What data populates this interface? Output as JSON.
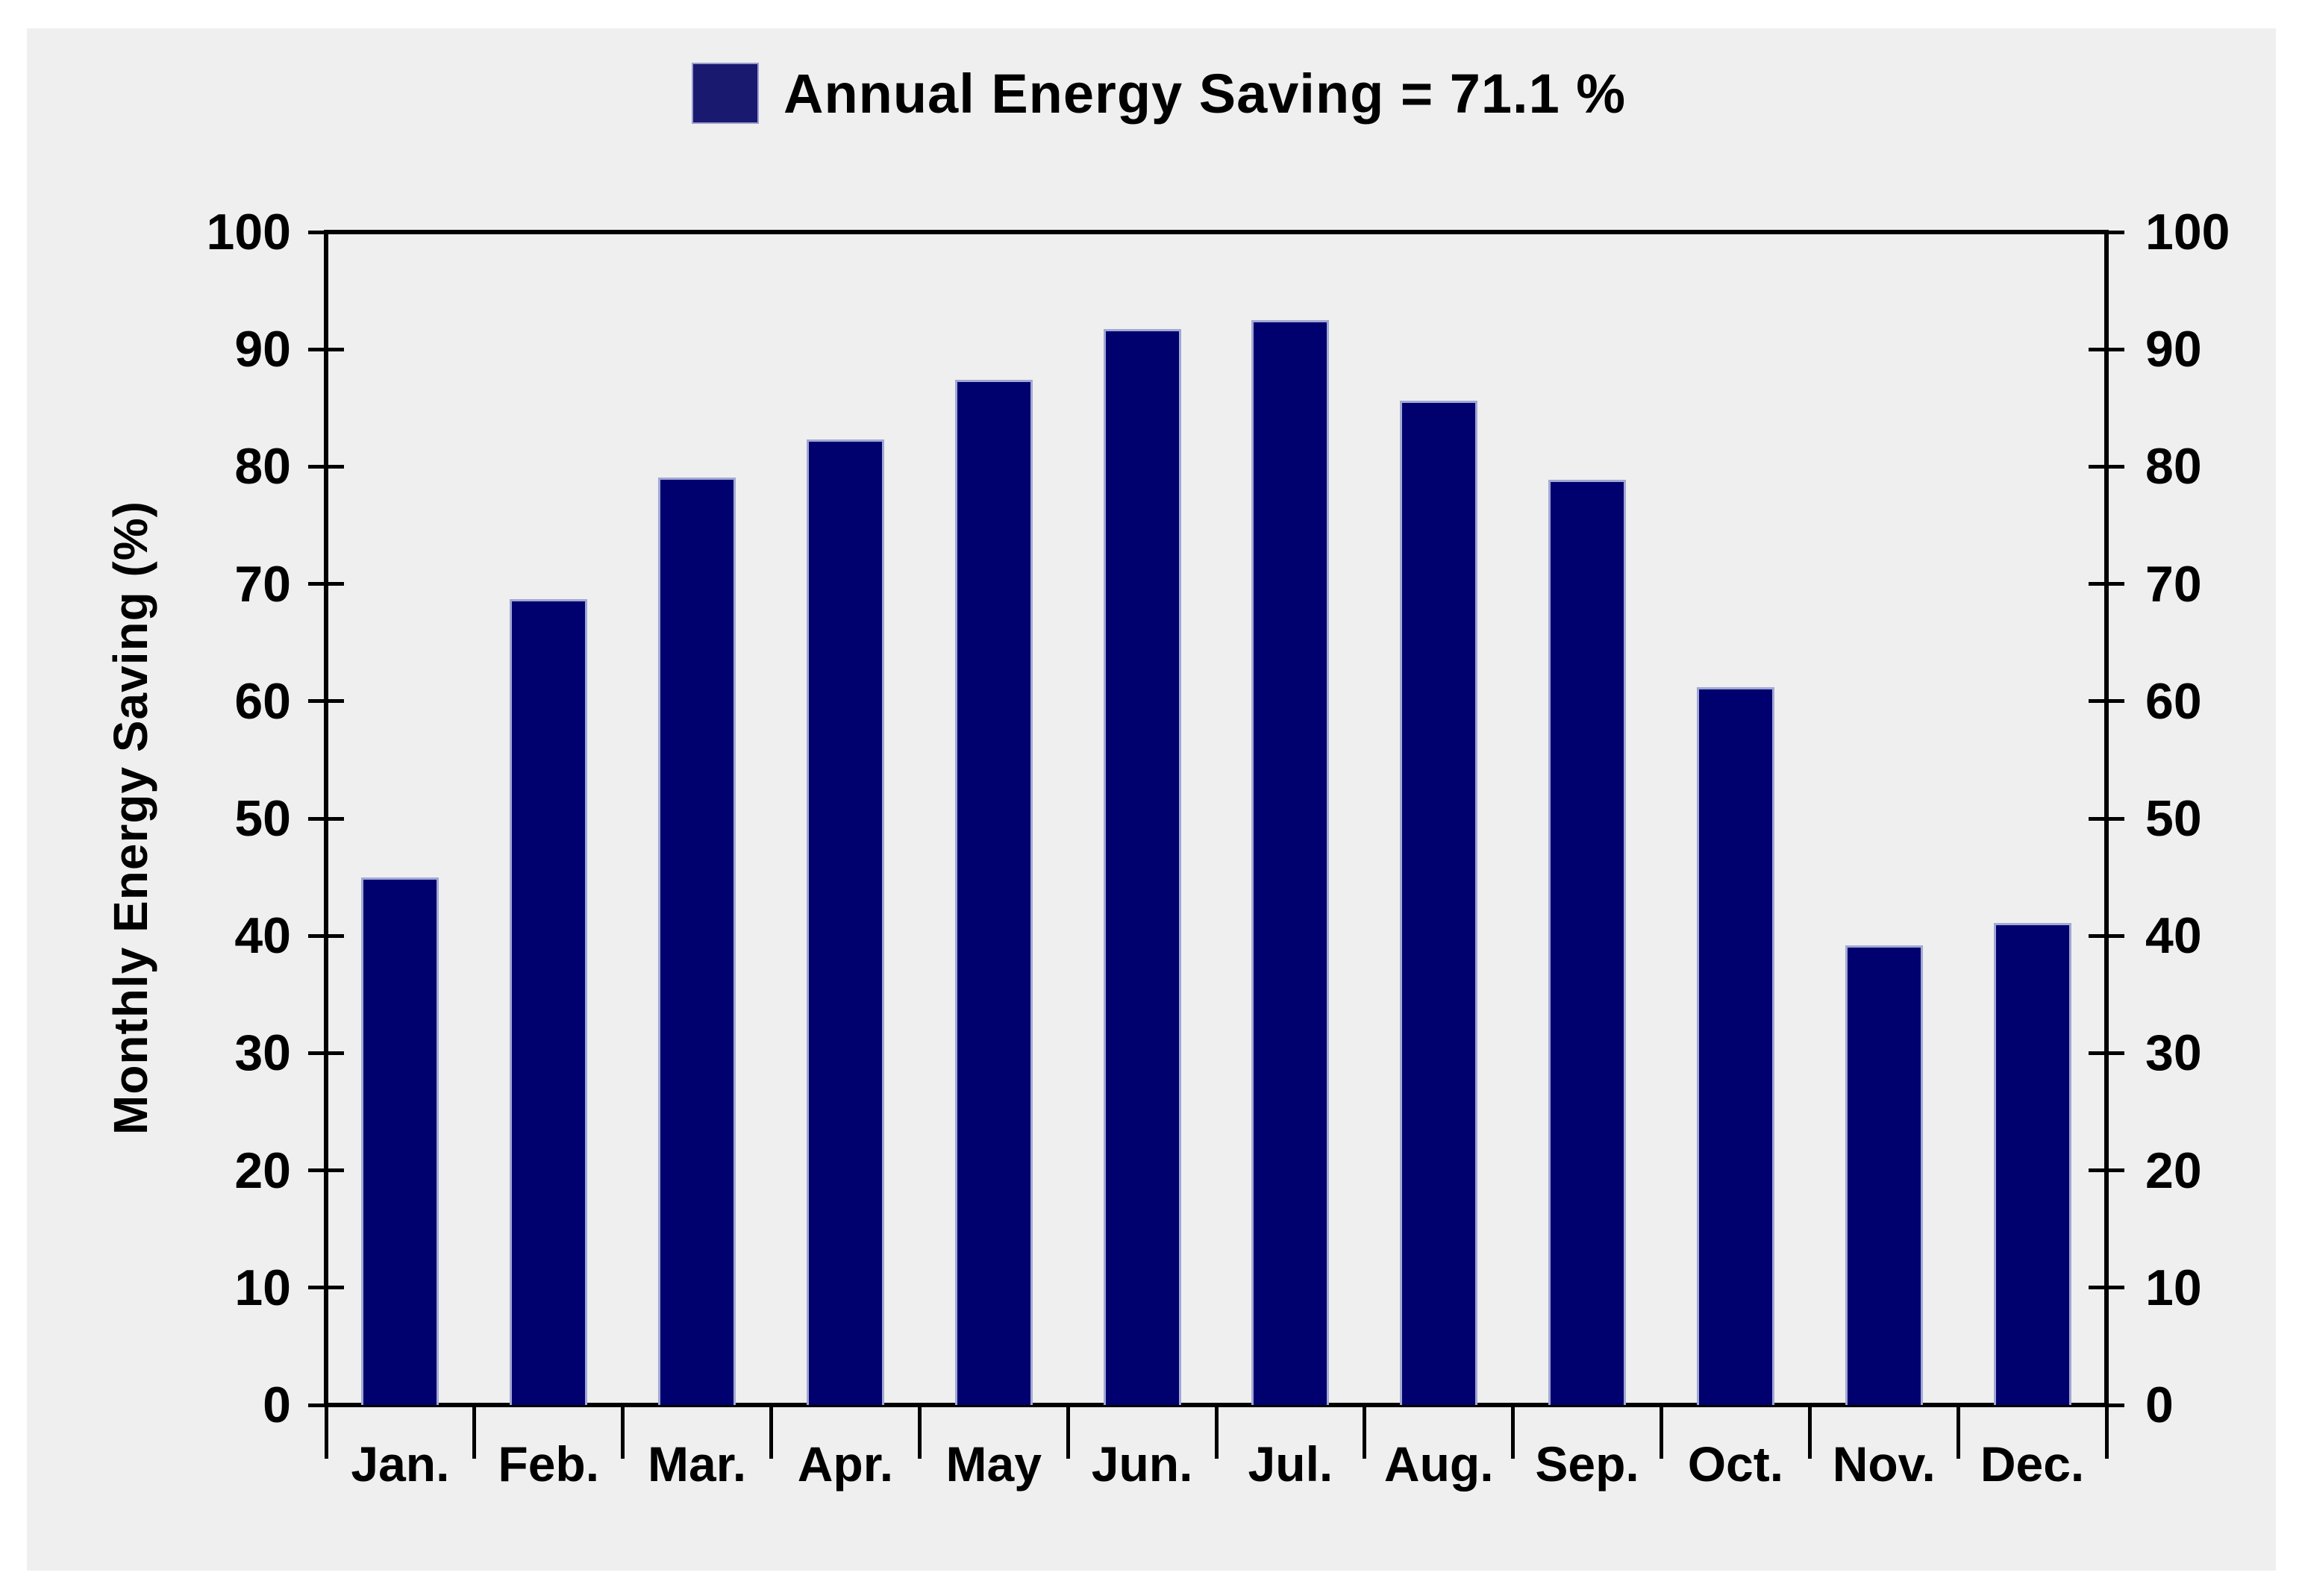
{
  "page": {
    "background_color": "#ffffff",
    "panel_background_color": "#efefef"
  },
  "legend": {
    "label": "Annual Energy Saving = 71.1 %",
    "swatch_color": "#191970"
  },
  "axes": {
    "y_left_label": "Monthly Energy Saving (%)",
    "y_tick_values": [
      0,
      10,
      20,
      30,
      40,
      50,
      60,
      70,
      80,
      90,
      100
    ],
    "y_axis_mirrored_right": true,
    "axis_color": "#000000"
  },
  "chart_data": {
    "type": "bar",
    "title": "Annual Energy Saving = 71.1 %",
    "annual_energy_saving_percent": 71.1,
    "categories": [
      "Jan.",
      "Feb.",
      "Mar.",
      "Apr.",
      "May",
      "Jun.",
      "Jul.",
      "Aug.",
      "Sep.",
      "Oct.",
      "Nov.",
      "Dec."
    ],
    "values": [
      45.0,
      68.7,
      79.1,
      82.3,
      87.4,
      91.7,
      92.5,
      85.6,
      78.9,
      61.2,
      39.2,
      41.1
    ],
    "xlabel": "",
    "ylabel": "Monthly Energy Saving (%)",
    "ylim": [
      0,
      100
    ],
    "ytick_step": 10,
    "grid": false,
    "legend_position": "top-center",
    "bar_color": "#00006e",
    "bar_border_color": "#a2a8d4"
  }
}
